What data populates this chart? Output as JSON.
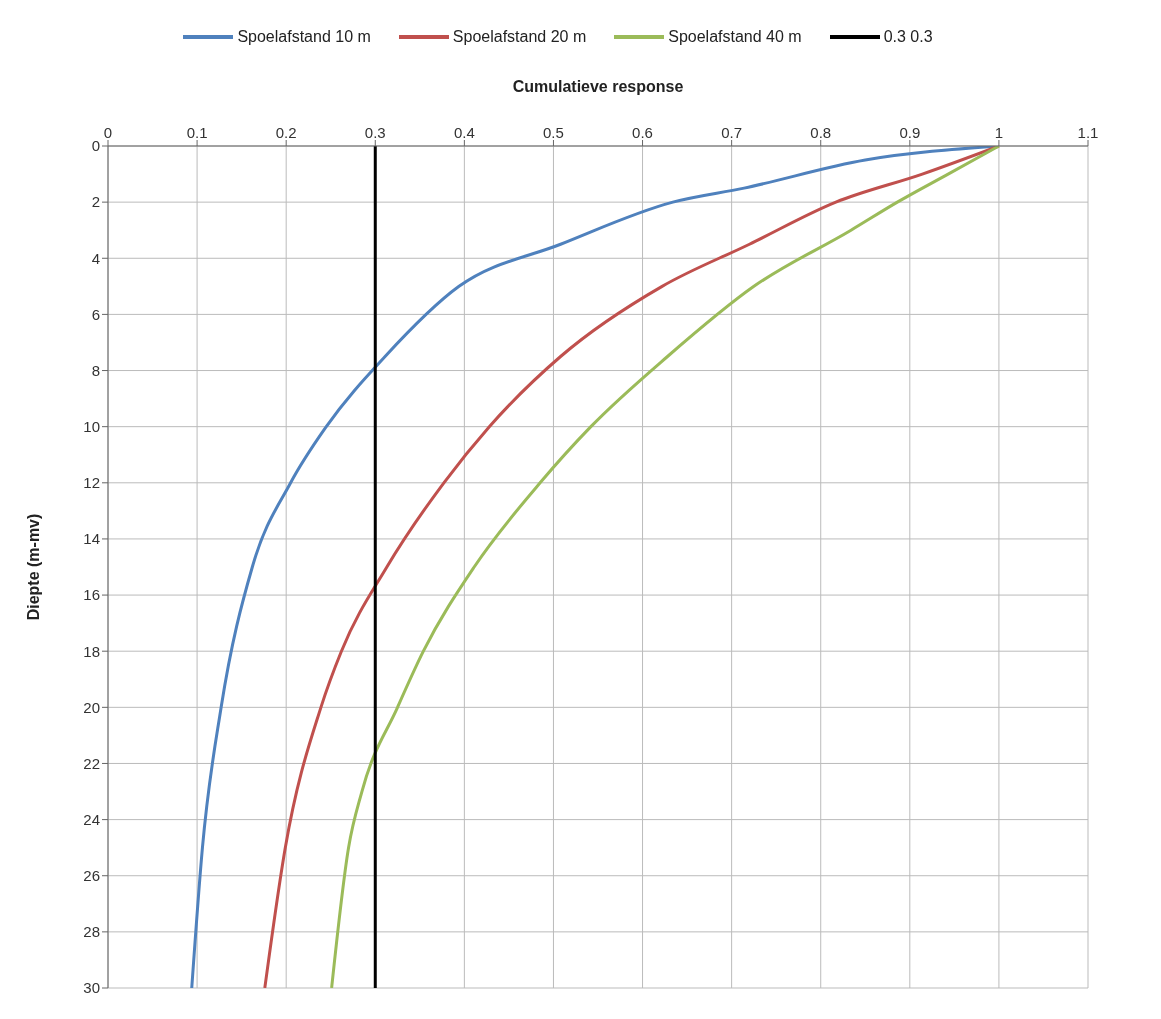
{
  "chart_data": {
    "type": "line",
    "xlabel": "Cumulatieve response",
    "ylabel": "Diepte (m-mv)",
    "xlim": [
      0,
      1.1
    ],
    "xticks": [
      0,
      0.1,
      0.2,
      0.3,
      0.4,
      0.5,
      0.6,
      0.7,
      0.8,
      0.9,
      1,
      1.1
    ],
    "ylim": [
      30,
      0
    ],
    "yticks": [
      0,
      2,
      4,
      6,
      8,
      10,
      12,
      14,
      16,
      18,
      20,
      22,
      24,
      26,
      28,
      30
    ],
    "grid": true,
    "legend": "top",
    "marker": "none",
    "line_style": "solid",
    "series": [
      {
        "name": "Spoelafstand 10 m",
        "color": "#4f81bd",
        "x": [
          1,
          0.85,
          0.714,
          0.634,
          0.508,
          0.394,
          0.311,
          0.245,
          0.205,
          0.162,
          0.127,
          0.106,
          0.094
        ],
        "values": [
          0,
          0.5,
          1.5,
          2,
          3.5,
          5,
          7.5,
          10,
          12,
          15,
          20,
          25,
          30
        ]
      },
      {
        "name": "Spoelafstand 20 m",
        "color": "#c0504d",
        "x": [
          1,
          0.914,
          0.817,
          0.72,
          0.622,
          0.508,
          0.428,
          0.377,
          0.313,
          0.262,
          0.239,
          0.199,
          0.176
        ],
        "values": [
          0,
          1,
          2,
          3.5,
          5,
          7.5,
          10,
          12,
          15,
          18,
          20,
          25,
          30
        ]
      },
      {
        "name": "Spoelafstand 40 m",
        "color": "#9bbb59",
        "x": [
          1,
          0.943,
          0.886,
          0.834,
          0.725,
          0.628,
          0.542,
          0.485,
          0.411,
          0.354,
          0.325,
          0.285,
          0.27,
          0.251
        ],
        "values": [
          0,
          1,
          2,
          3,
          5,
          7.5,
          10,
          12,
          15,
          18,
          20,
          23,
          25,
          30
        ]
      },
      {
        "name": "0.3 0.3",
        "color": "#000000",
        "x": [
          0.3,
          0.3
        ],
        "values": [
          0,
          30
        ]
      }
    ]
  }
}
